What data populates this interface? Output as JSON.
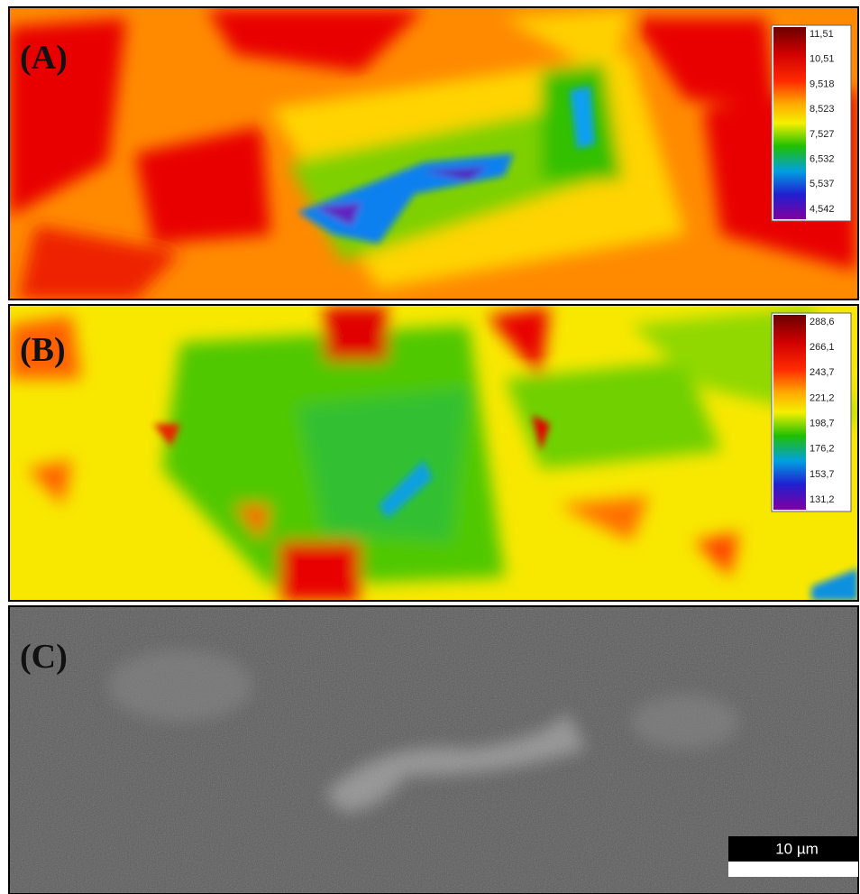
{
  "panels": [
    {
      "label": "(A)",
      "colorbar": [
        "11,51",
        "10,51",
        "9,518",
        "8,523",
        "7,527",
        "6,532",
        "5,537",
        "4,542"
      ]
    },
    {
      "label": "(B)",
      "colorbar": [
        "288,6",
        "266,1",
        "243,7",
        "221,2",
        "198,7",
        "176,2",
        "153,7",
        "131,2"
      ]
    },
    {
      "label": "(C)"
    }
  ],
  "scale_bar": "10 µm"
}
